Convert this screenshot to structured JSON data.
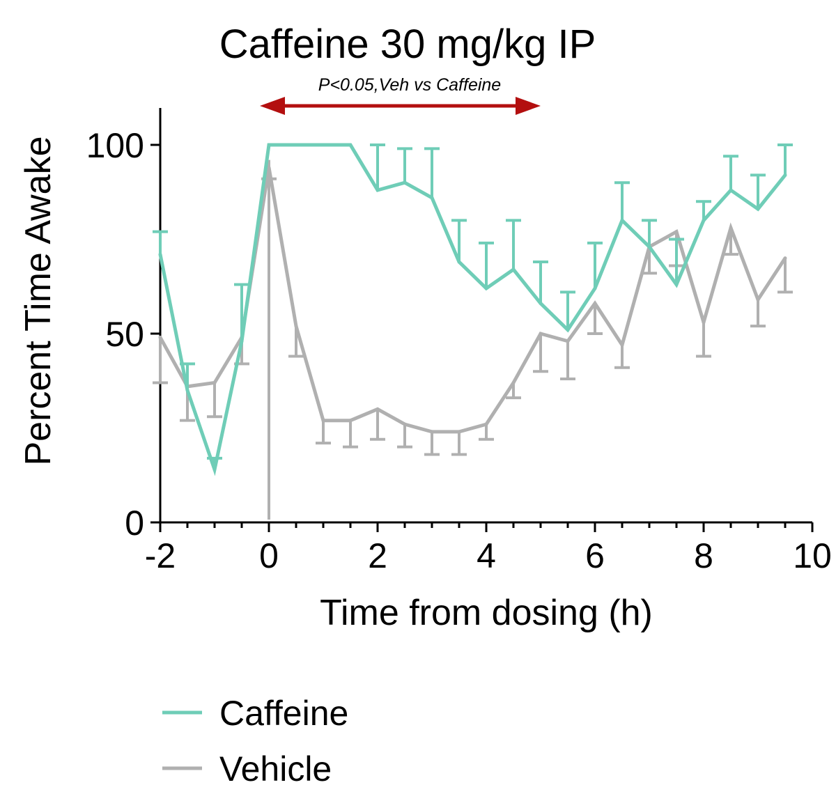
{
  "chart_data": {
    "type": "line",
    "title": "Caffeine 30 mg/kg IP",
    "xlabel": "Time from dosing  (h)",
    "ylabel": "Percent Time Awake",
    "xlim": [
      -2,
      10
    ],
    "ylim": [
      0,
      110
    ],
    "x_major_ticks": [
      -2,
      0,
      2,
      4,
      6,
      8,
      10
    ],
    "x_tick_labels": [
      "-2",
      "0",
      "2",
      "4",
      "6",
      "8",
      "10"
    ],
    "x_minor_step": 0.5,
    "y_ticks": [
      0,
      50,
      100
    ],
    "y_tick_labels": [
      "0",
      "50",
      "100"
    ],
    "grid": false,
    "legend_position": "bottom-left",
    "x": [
      -2,
      -1.5,
      -1,
      -0.5,
      0,
      0.5,
      1,
      1.5,
      2,
      2.5,
      3,
      3.5,
      4,
      4.5,
      5,
      5.5,
      6,
      6.5,
      7,
      7.5,
      8,
      8.5,
      9,
      9.5
    ],
    "series": [
      {
        "name": "Caffeine",
        "color": "#6FCDB7",
        "error_direction": "up",
        "values": [
          71,
          35,
          14,
          48,
          100,
          100,
          100,
          100,
          88,
          90,
          86,
          69,
          62,
          67,
          58,
          51,
          62,
          80,
          73,
          63,
          80,
          88,
          83,
          92
        ],
        "errors": [
          6,
          7,
          3,
          15,
          0,
          0,
          0,
          0,
          12,
          9,
          13,
          11,
          12,
          13,
          11,
          10,
          12,
          10,
          7,
          12,
          5,
          9,
          9,
          8
        ]
      },
      {
        "name": "Vehicle",
        "color": "#B0B0B0",
        "error_direction": "down",
        "values": [
          49,
          36,
          37,
          49,
          94,
          52,
          27,
          27,
          30,
          26,
          24,
          24,
          26,
          37,
          50,
          48,
          58,
          47,
          73,
          77,
          53,
          78,
          59,
          70
        ],
        "errors": [
          12,
          9,
          9,
          7,
          3,
          8,
          6,
          7,
          8,
          6,
          6,
          6,
          4,
          4,
          10,
          10,
          8,
          6,
          7,
          9,
          9,
          7,
          7,
          9
        ]
      }
    ],
    "annotation": {
      "text": "P<0.05,Veh vs Caffeine",
      "x_start": 0.5,
      "x_end": 5,
      "color": "#B30F0F"
    },
    "dose_marker_x": 0
  }
}
